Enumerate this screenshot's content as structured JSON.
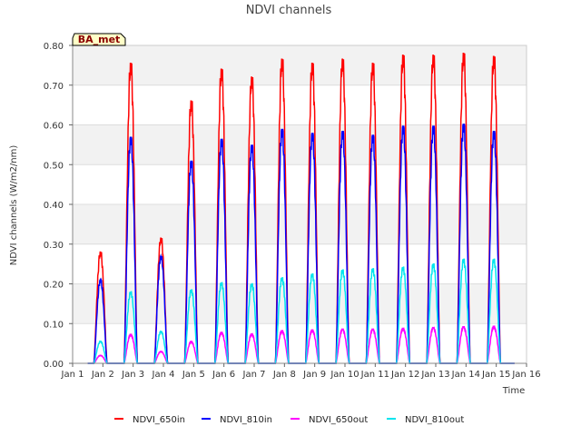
{
  "chart_data": {
    "type": "line",
    "title": "NDVI channels",
    "xlabel": "Time",
    "ylabel": "NDVI channels (W/m2/nm)",
    "badge": "BA_met",
    "xlim": [
      1,
      16
    ],
    "ylim": [
      0,
      0.8
    ],
    "x_ticks": [
      1,
      2,
      3,
      4,
      5,
      6,
      7,
      8,
      9,
      10,
      11,
      12,
      13,
      14,
      15,
      16
    ],
    "x_tick_labels": [
      "Jan 1",
      "Jan 2",
      "Jan 3",
      "Jan 4",
      "Jan 5",
      "Jan 6",
      "Jan 7",
      "Jan 8",
      "Jan 9",
      "Jan 10",
      "Jan 11",
      "Jan 12",
      "Jan 13",
      "Jan 14",
      "Jan 15",
      "Jan 16"
    ],
    "y_ticks": [
      0,
      0.1,
      0.2,
      0.3,
      0.4,
      0.5,
      0.6,
      0.7,
      0.8
    ],
    "y_tick_labels": [
      "0.00",
      "0.10",
      "0.20",
      "0.30",
      "0.40",
      "0.50",
      "0.60",
      "0.70",
      "0.80"
    ],
    "grid": true,
    "band_background": true,
    "legend_position": "bottom",
    "day_fraction_note": "daily peaks centered near day + 0.92",
    "series": [
      {
        "name": "NDVI_650in",
        "color": "#ff0000",
        "daily_peaks": [
          0.28,
          0.755,
          0.315,
          0.66,
          0.74,
          0.72,
          0.765,
          0.755,
          0.765,
          0.755,
          0.775,
          0.775,
          0.78,
          0.772
        ]
      },
      {
        "name": "NDVI_810in",
        "color": "#0000ff",
        "daily_peaks": [
          0.21,
          0.57,
          0.27,
          0.51,
          0.565,
          0.55,
          0.59,
          0.58,
          0.585,
          0.575,
          0.598,
          0.598,
          0.603,
          0.585
        ]
      },
      {
        "name": "NDVI_650out",
        "color": "#ff00ff",
        "daily_peaks": [
          0.02,
          0.073,
          0.03,
          0.055,
          0.078,
          0.074,
          0.082,
          0.084,
          0.086,
          0.086,
          0.088,
          0.09,
          0.092,
          0.093
        ]
      },
      {
        "name": "NDVI_810out",
        "color": "#00e5ee",
        "daily_peaks": [
          0.055,
          0.18,
          0.08,
          0.185,
          0.203,
          0.2,
          0.215,
          0.225,
          0.235,
          0.238,
          0.242,
          0.25,
          0.262,
          0.262
        ]
      }
    ]
  }
}
